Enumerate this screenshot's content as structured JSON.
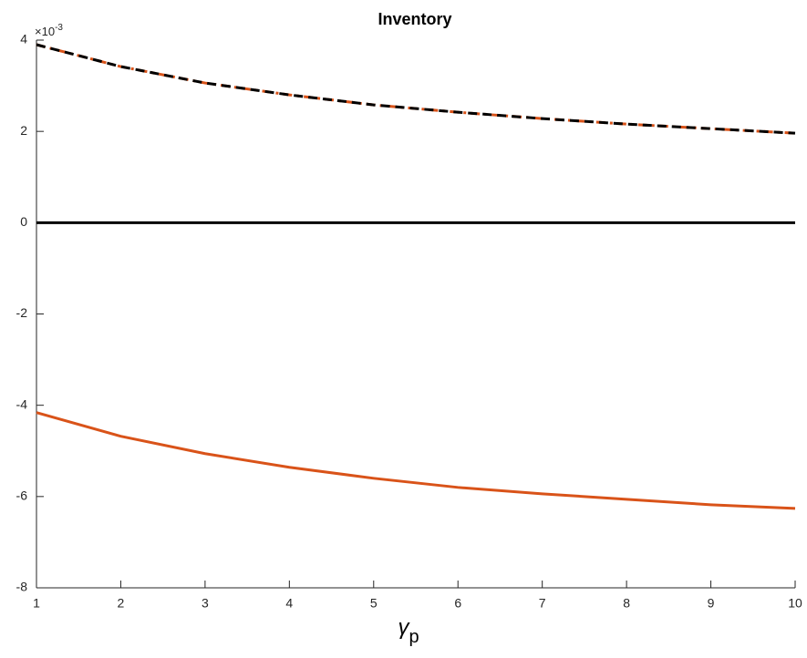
{
  "chart_data": {
    "type": "line",
    "title": "Inventory",
    "xlabel": "γ",
    "xlabel_subscript": "p",
    "y_exponent_base": "×10",
    "y_exponent": "-3",
    "x": [
      1,
      2,
      3,
      4,
      5,
      6,
      7,
      8,
      9,
      10
    ],
    "series": [
      {
        "color": "#d95319",
        "style": "dashdot",
        "values": [
          3.9,
          3.42,
          3.06,
          2.8,
          2.58,
          2.42,
          2.28,
          2.16,
          2.06,
          1.96
        ]
      },
      {
        "color": "#000000",
        "style": "dashed",
        "values": [
          3.9,
          3.42,
          3.06,
          2.8,
          2.58,
          2.42,
          2.28,
          2.16,
          2.06,
          1.96
        ]
      },
      {
        "color": "#000000",
        "style": "solid",
        "values": [
          0,
          0,
          0,
          0,
          0,
          0,
          0,
          0,
          0,
          0
        ]
      },
      {
        "color": "#d95319",
        "style": "solid",
        "values": [
          -4.16,
          -4.68,
          -5.06,
          -5.36,
          -5.6,
          -5.8,
          -5.94,
          -6.06,
          -6.18,
          -6.26
        ]
      }
    ],
    "xlim": [
      1,
      10
    ],
    "xticks": [
      1,
      2,
      3,
      4,
      5,
      6,
      7,
      8,
      9,
      10
    ],
    "ylim": [
      -8,
      4
    ],
    "yticks": [
      -8,
      -6,
      -4,
      -2,
      0,
      2,
      4
    ],
    "grid": false
  }
}
